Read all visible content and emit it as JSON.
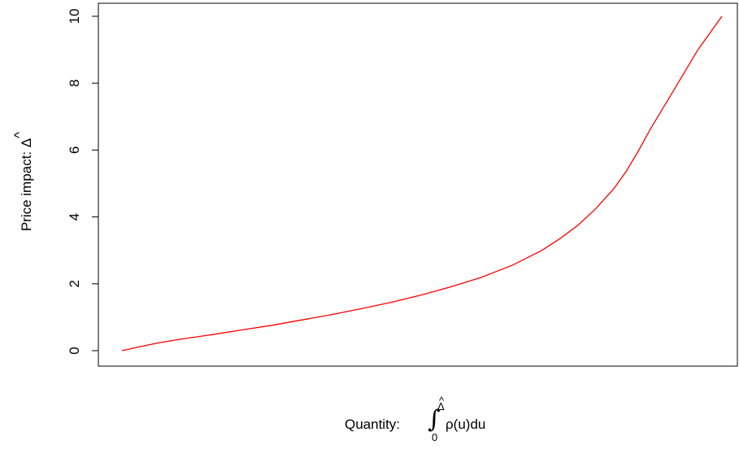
{
  "chart_data": {
    "type": "line",
    "title": "",
    "xlabel": {
      "prefix": "Quantity: ",
      "integral_symbol": "∫",
      "upper_limit": "Δ",
      "upper_limit_hat": "^",
      "lower_limit": "0",
      "integrand": "ρ(u)du"
    },
    "ylabel": {
      "text": "Price impact: ",
      "symbol": "Δ",
      "hat": "^"
    },
    "ylim": [
      0,
      10
    ],
    "yticks": [
      "0",
      "2",
      "4",
      "6",
      "8",
      "10"
    ],
    "x_ticks_shown": false,
    "grid": false,
    "series": [
      {
        "color": "#ff0000",
        "x": [
          0,
          0.03,
          0.06,
          0.1,
          0.15,
          0.2,
          0.25,
          0.3,
          0.35,
          0.4,
          0.45,
          0.5,
          0.55,
          0.6,
          0.65,
          0.7,
          0.73,
          0.76,
          0.79,
          0.82,
          0.84,
          0.86,
          0.88,
          0.9,
          0.92,
          0.94,
          0.96,
          0.98,
          1.0
        ],
        "y": [
          0,
          0.12,
          0.23,
          0.35,
          0.48,
          0.62,
          0.76,
          0.92,
          1.08,
          1.26,
          1.45,
          1.67,
          1.92,
          2.2,
          2.55,
          3.0,
          3.35,
          3.75,
          4.25,
          4.85,
          5.35,
          5.95,
          6.6,
          7.2,
          7.8,
          8.4,
          9.0,
          9.5,
          10.0
        ]
      }
    ]
  }
}
